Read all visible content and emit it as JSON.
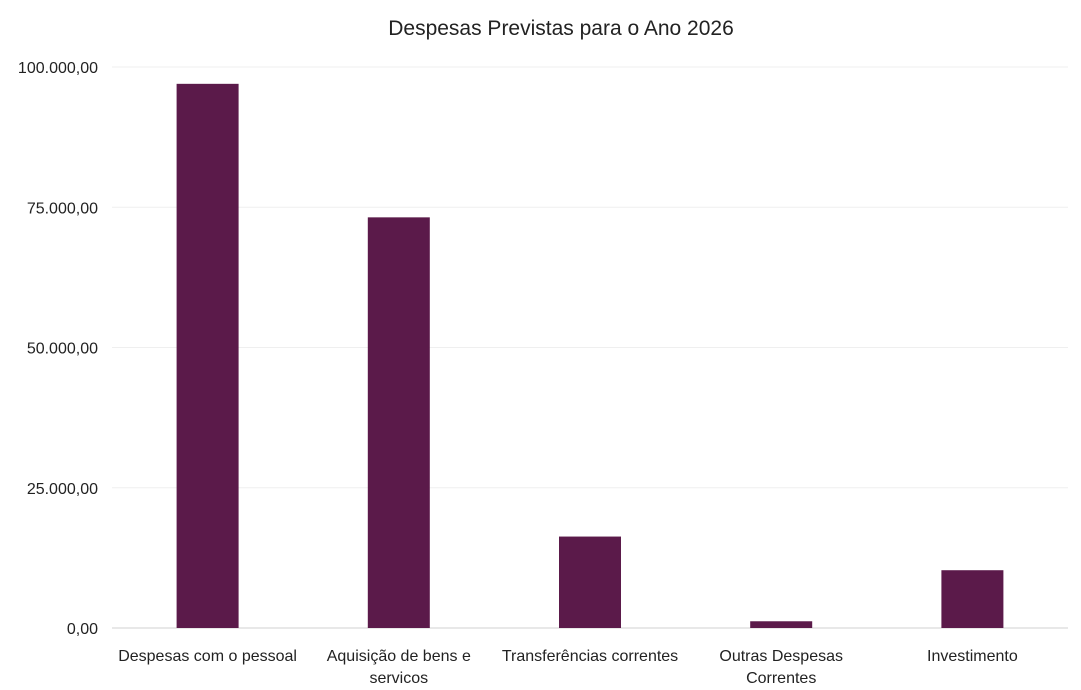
{
  "chart_data": {
    "type": "bar",
    "title": "Despesas Previstas para o Ano 2026",
    "xlabel": "",
    "ylabel": "",
    "categories": [
      [
        "Despesas com o pessoal"
      ],
      [
        "Aquisição de bens e",
        "servicos"
      ],
      [
        "Transferências correntes"
      ],
      [
        "Outras Despesas",
        "Correntes"
      ],
      [
        "Investimento"
      ]
    ],
    "values": [
      97000,
      73200,
      16300,
      1200,
      10300
    ],
    "ylim": [
      0,
      100000
    ],
    "y_ticks": [
      0,
      25000,
      50000,
      75000,
      100000
    ],
    "y_tick_labels": [
      "0,00",
      "25.000,00",
      "50.000,00",
      "75.000,00",
      "100.000,00"
    ],
    "grid": true,
    "legend": "none",
    "bar_color": "#5b1a4a"
  }
}
